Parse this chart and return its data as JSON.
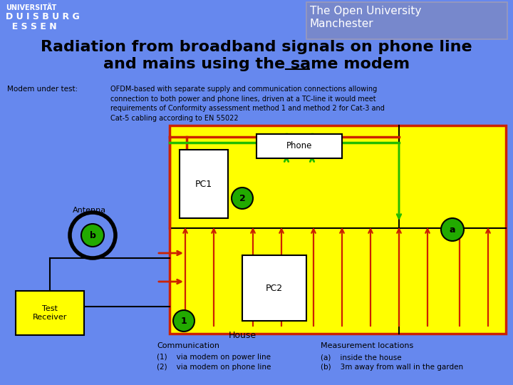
{
  "bg_color": "#6688ee",
  "title_line1": "Radiation from broadband signals on phone line",
  "title_line2_pre": "and mains using the ",
  "title_line2_under": "same",
  "title_line2_post": " modem",
  "univ_line1": "UNIVERSITÄT",
  "univ_line2": "D U I S B U R G",
  "univ_line3": "  E S S E N",
  "ou_line1": "The Open University",
  "ou_line2": "Manchester",
  "modem_label": "Modem under test:",
  "modem_desc": "OFDM-based with separate supply and communication connections allowing\nconnection to both power and phone lines, driven at a TC-line it would meet\nrequirements of Conformity assessment method 1 and method 2 for Cat-3 and\nCat-5 cabling according to EN 55022",
  "house_color": "#ffff00",
  "red_color": "#cc2200",
  "green_color": "#22bb00",
  "comm_title": "Communication",
  "comm_1": "(1)    via modem on power line",
  "comm_2": "(2)    via modem on phone line",
  "meas_title": "Measurement locations",
  "meas_a": "(a)    inside the house",
  "meas_b": "(b)    3m away from wall in the garden",
  "antenna_label": "Antenna"
}
